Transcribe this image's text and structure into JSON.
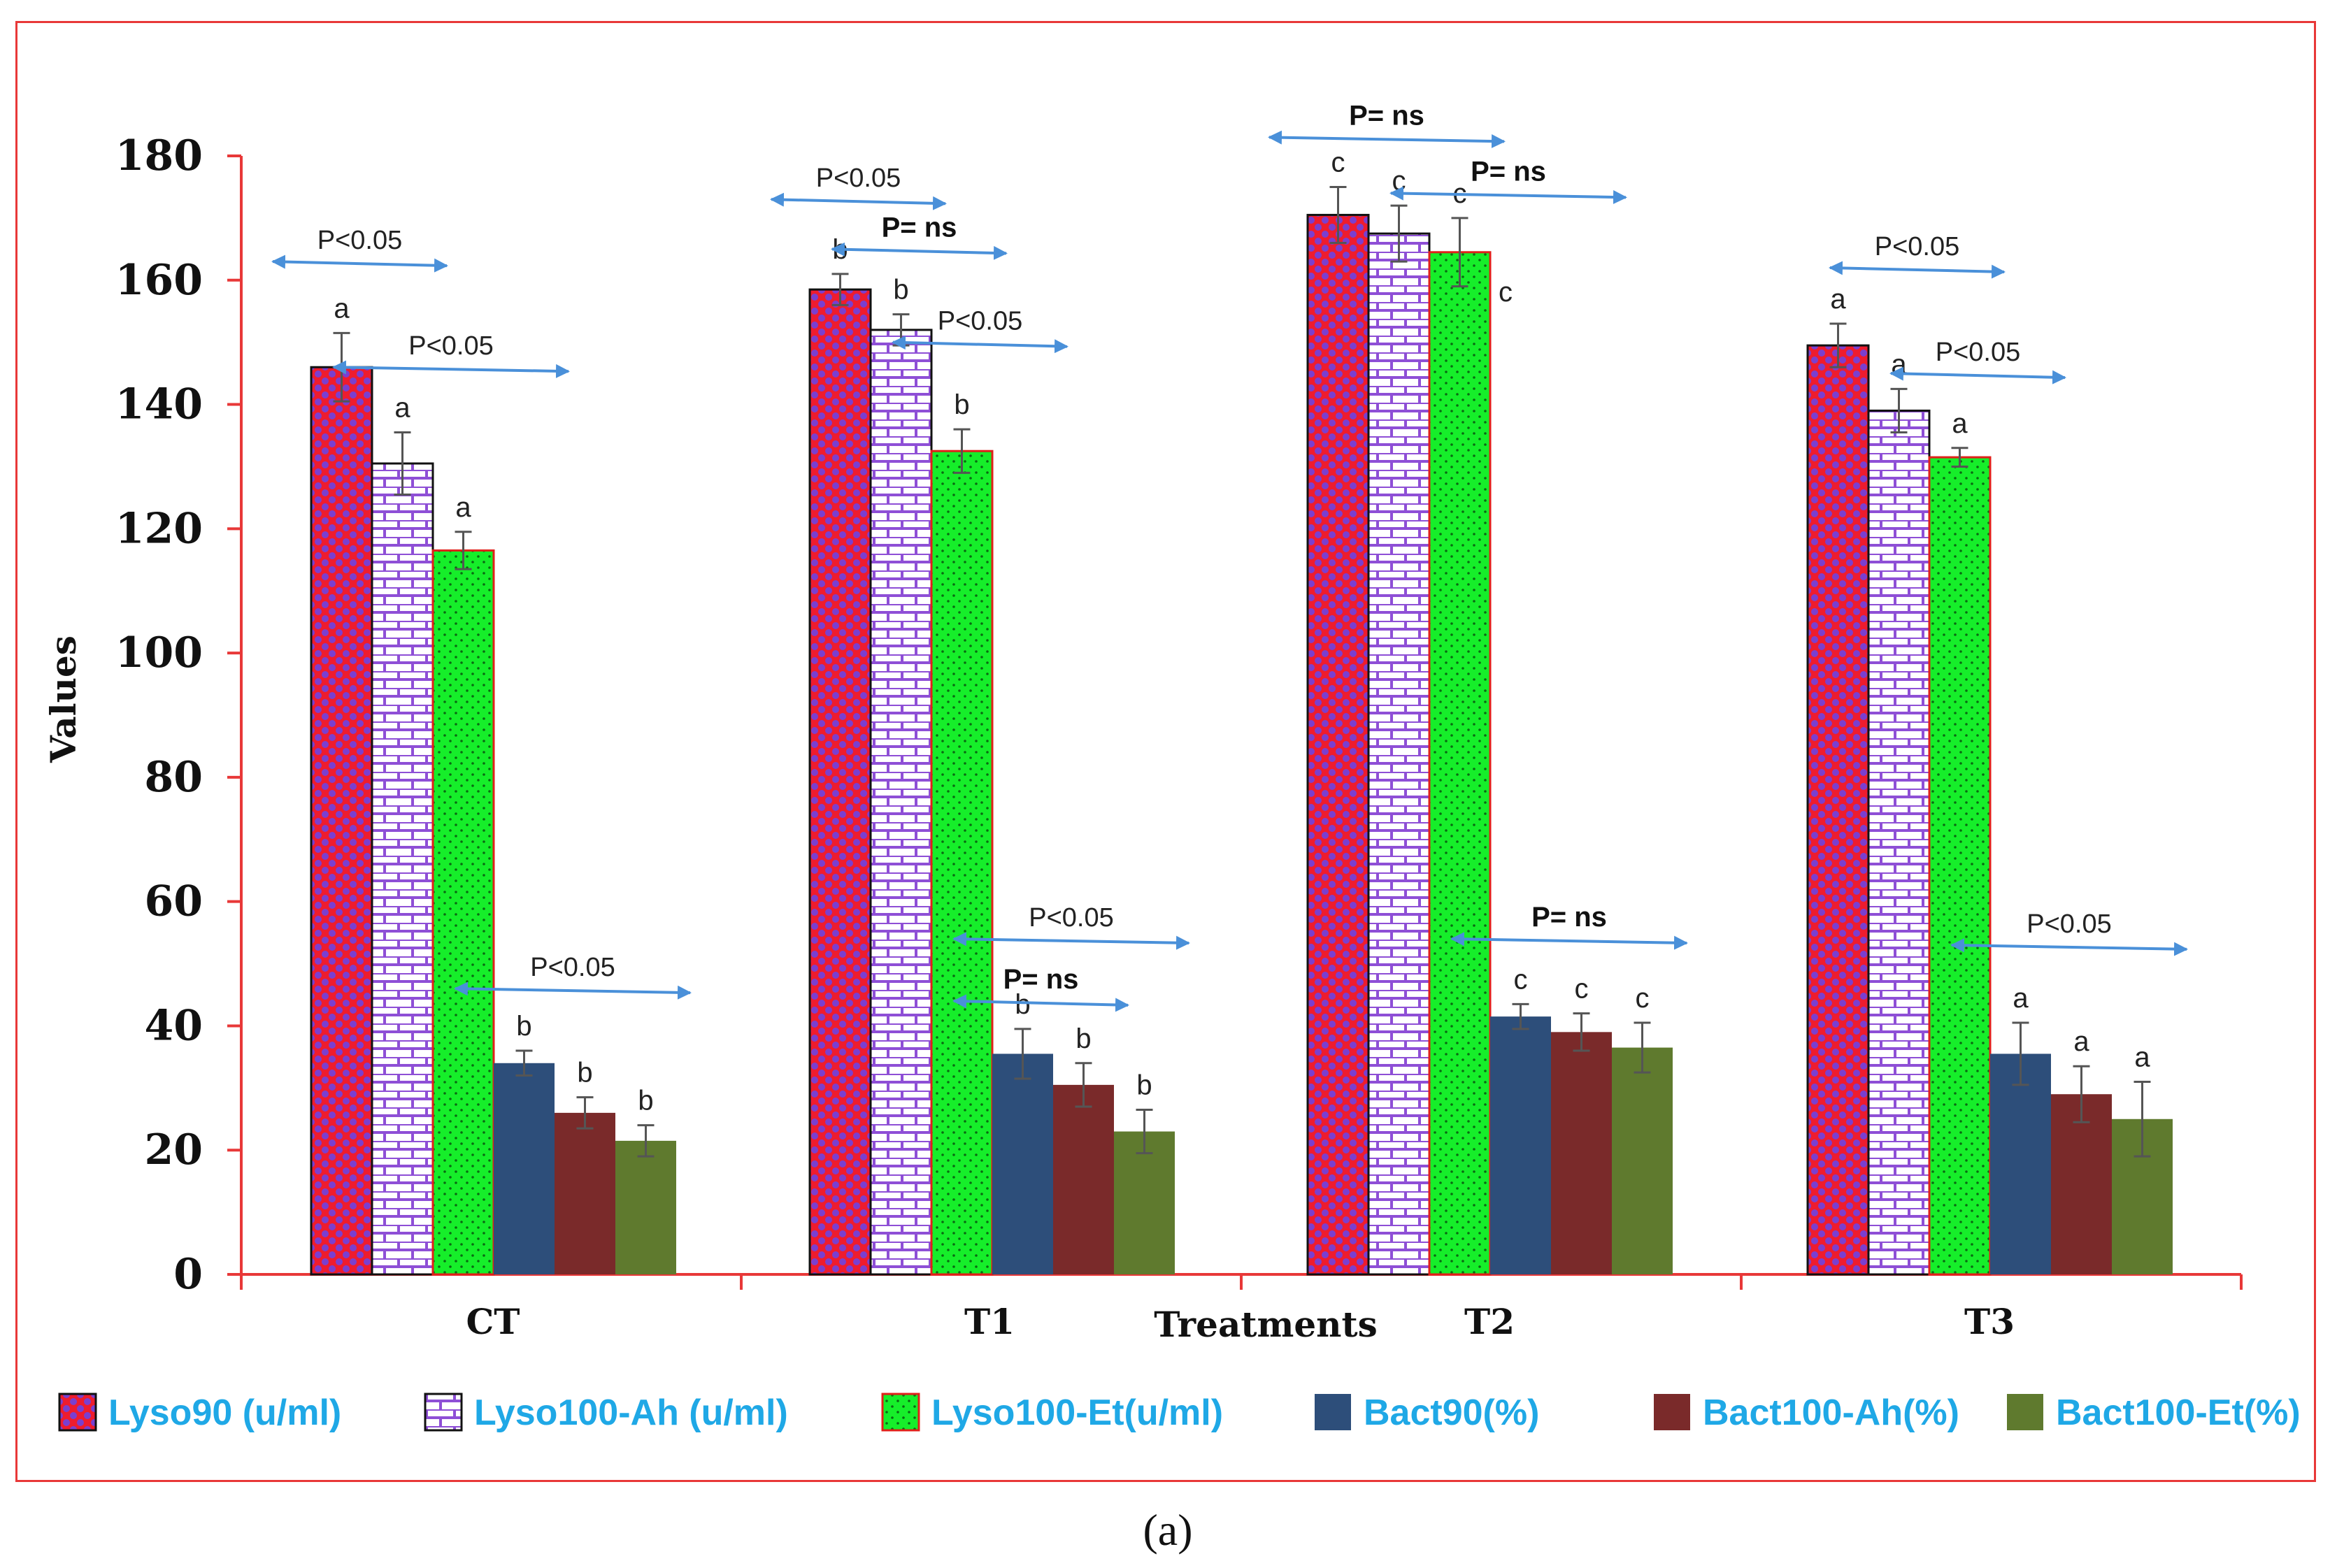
{
  "chart_data": {
    "type": "bar",
    "xlabel": "Treatments",
    "ylabel": "Values",
    "ylim": [
      0,
      180
    ],
    "yticks": [
      0,
      20,
      40,
      60,
      80,
      100,
      120,
      140,
      160,
      180
    ],
    "categories": [
      "CT",
      "T1",
      "T2",
      "T3"
    ],
    "series": [
      {
        "name": "Lyso90 (u/ml)",
        "color": "#ee1c2e",
        "pattern": "dots-blue",
        "values": [
          146,
          158.5,
          170.5,
          149.5
        ],
        "errors": [
          5.5,
          2.5,
          4.5,
          3.5
        ],
        "letters": [
          "a",
          "b",
          "c",
          "a"
        ]
      },
      {
        "name": "Lyso100-Ah (u/ml)",
        "color": "#ffffff",
        "pattern": "bricks-purple",
        "values": [
          130.5,
          152,
          167.5,
          139
        ],
        "errors": [
          5,
          2.5,
          4.5,
          3.5
        ],
        "letters": [
          "a",
          "b",
          "c",
          "a"
        ]
      },
      {
        "name": "Lyso100-Et(u/ml)",
        "color": "#16ee2a",
        "pattern": "dots-small",
        "values": [
          116.5,
          132.5,
          164.5,
          131.5
        ],
        "errors": [
          3,
          3.5,
          5.5,
          1.5
        ],
        "letters": [
          "a",
          "b",
          "c",
          "a"
        ]
      },
      {
        "name": "Bact90(%)",
        "color": "#2d4e7a",
        "pattern": "solid",
        "values": [
          34,
          35.5,
          41.5,
          35.5
        ],
        "errors": [
          2,
          4,
          2,
          5
        ],
        "letters": [
          "b",
          "b",
          "c",
          "a"
        ]
      },
      {
        "name": "Bact100-Ah(%)",
        "color": "#7a2a2a",
        "pattern": "solid",
        "values": [
          26,
          30.5,
          39,
          29
        ],
        "errors": [
          2.5,
          3.5,
          3,
          4.5
        ],
        "letters": [
          "b",
          "b",
          "c",
          "a"
        ]
      },
      {
        "name": "Bact100-Et(%)",
        "color": "#5f7a2e",
        "pattern": "solid",
        "values": [
          21.5,
          23,
          36.5,
          25
        ],
        "errors": [
          2.5,
          3.5,
          4,
          6
        ],
        "letters": [
          "b",
          "b",
          "c",
          "a"
        ]
      }
    ],
    "extra_letters": [
      {
        "category": "T2",
        "series": 2,
        "text": "c"
      }
    ],
    "annotations": [
      {
        "category": "CT",
        "from_series": 0,
        "to_series": 1,
        "level": 163,
        "text": "P<0.05"
      },
      {
        "category": "CT",
        "from_series": 1,
        "to_series": 3,
        "level": 146,
        "text": "P<0.05"
      },
      {
        "category": "CT",
        "from_series": 3,
        "to_series": 5,
        "level": 46,
        "text": "P<0.05"
      },
      {
        "category": "T1",
        "from_series": 0,
        "to_series": 1,
        "level": 173,
        "text": "P<0.05"
      },
      {
        "category": "T1",
        "from_series": 1,
        "to_series": 2,
        "level": 165,
        "text": "P= ns"
      },
      {
        "category": "T1",
        "from_series": 2,
        "to_series": 3,
        "level": 150,
        "text": "P<0.05"
      },
      {
        "category": "T1",
        "from_series": 3,
        "to_series": 5,
        "level": 54,
        "text": "P<0.05"
      },
      {
        "category": "T1",
        "from_series": 3,
        "to_series": 4,
        "level": 44,
        "text": "P= ns"
      },
      {
        "category": "T2",
        "from_series": 0,
        "to_series": 2,
        "level": 183,
        "text": "P= ns"
      },
      {
        "category": "T2",
        "from_series": 2,
        "to_series": 4,
        "level": 174,
        "text": "P= ns"
      },
      {
        "category": "T2",
        "from_series": 3,
        "to_series": 5,
        "level": 54,
        "text": "P= ns"
      },
      {
        "category": "T3",
        "from_series": 1,
        "to_series": 2,
        "level": 162,
        "text": "P<0.05"
      },
      {
        "category": "T3",
        "from_series": 2,
        "to_series": 3,
        "level": 145,
        "text": "P<0.05"
      },
      {
        "category": "T3",
        "from_series": 3,
        "to_series": 5,
        "level": 53,
        "text": "P<0.05"
      }
    ],
    "legend_position": "bottom"
  },
  "caption": "(a)"
}
